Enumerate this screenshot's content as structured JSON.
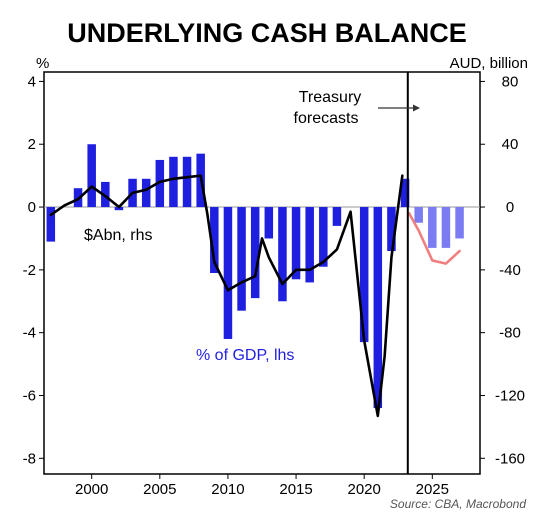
{
  "chart_data": {
    "type": "bar",
    "title": "UNDERLYING CASH BALANCE",
    "source": "Source: CBA, Macrobond",
    "left_axis": {
      "unit": "%",
      "ylim": [
        -8.5,
        4.3
      ],
      "ticks": [
        4,
        2,
        0,
        -2,
        -4,
        -6,
        -8
      ],
      "tick_labels": [
        "4",
        "2",
        "0",
        "-2",
        "-4",
        "-6",
        "-8"
      ]
    },
    "right_axis": {
      "unit": "AUD, billion",
      "ylim": [
        -170,
        86
      ],
      "ticks": [
        80,
        40,
        0,
        -40,
        -80,
        -120,
        -160
      ],
      "tick_labels": [
        "80",
        "40",
        "0",
        "-40",
        "-80",
        "-120",
        "-160"
      ]
    },
    "x_axis": {
      "xlim": [
        1996.5,
        2028.5
      ],
      "ticks": [
        2000,
        2005,
        2010,
        2015,
        2020,
        2025
      ],
      "tick_labels": [
        "2000",
        "2005",
        "2010",
        "2015",
        "2020",
        "2025"
      ]
    },
    "forecast_year": 2023.2,
    "annotations": {
      "forecast_line1": "Treasury",
      "forecast_line2": "forecasts",
      "abn_label": "$Abn, rhs",
      "gdp_label": "% of GDP, lhs"
    },
    "series": [
      {
        "name": "% of GDP, lhs",
        "axis": "left",
        "kind": "bar",
        "color": "#1f1fe0",
        "x": [
          1997,
          1998,
          1999,
          2000,
          2001,
          2002,
          2003,
          2004,
          2005,
          2006,
          2007,
          2008,
          2009,
          2010,
          2011,
          2012,
          2013,
          2014,
          2015,
          2016,
          2017,
          2018,
          2019,
          2020,
          2021,
          2022,
          2023
        ],
        "values": [
          -1.1,
          0.0,
          0.6,
          2.0,
          0.8,
          -0.1,
          0.9,
          0.9,
          1.5,
          1.6,
          1.6,
          1.7,
          -2.1,
          -4.2,
          -3.3,
          -2.9,
          -1.0,
          -3.0,
          -2.3,
          -2.4,
          -1.9,
          -0.6,
          0.0,
          -4.3,
          -6.4,
          -1.4,
          0.9
        ]
      },
      {
        "name": "% of GDP, lhs (forecast)",
        "axis": "left",
        "kind": "bar",
        "color": "#7b7bf2",
        "x": [
          2024,
          2025,
          2026,
          2027
        ],
        "values": [
          -0.5,
          -1.3,
          -1.3,
          -1.0
        ]
      },
      {
        "name": "$Abn, rhs",
        "axis": "right",
        "kind": "line",
        "color": "#000000",
        "x": [
          1997,
          1998,
          1999,
          2000,
          2001,
          2002,
          2003,
          2004,
          2005,
          2006,
          2007,
          2008,
          2008.5,
          2009,
          2010,
          2011,
          2012,
          2012.5,
          2013,
          2014,
          2015,
          2016,
          2017,
          2018,
          2019,
          2020,
          2021,
          2021.5,
          2022,
          2022.8
        ],
        "values": [
          -5,
          1,
          5,
          13,
          7,
          0,
          9,
          11,
          16,
          18,
          19,
          20,
          -5,
          -35,
          -53,
          -48,
          -44,
          -20,
          -32,
          -49,
          -40,
          -40,
          -35,
          -27,
          -3,
          -85,
          -133,
          -95,
          -32,
          20
        ]
      },
      {
        "name": "$Abn, rhs (forecast)",
        "axis": "right",
        "kind": "line",
        "color": "#f08080",
        "x": [
          2023.3,
          2024,
          2025,
          2026,
          2027
        ],
        "values": [
          -4,
          -15,
          -34,
          -36,
          -28
        ]
      }
    ]
  }
}
